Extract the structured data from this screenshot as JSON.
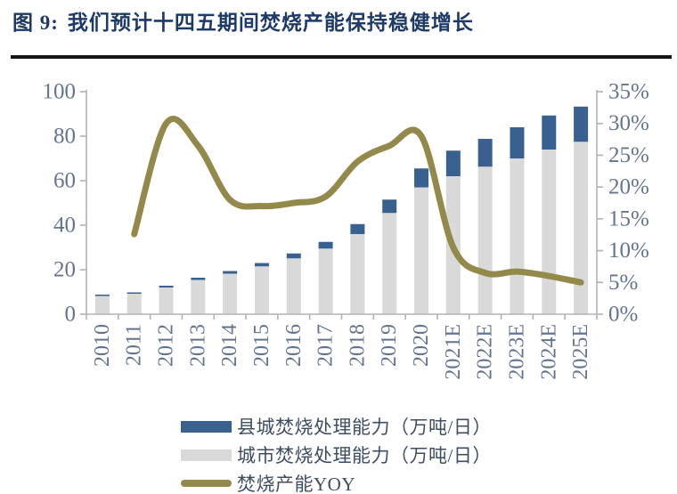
{
  "figure": {
    "label": "图 9:",
    "title": "我们预计十四五期间焚烧产能保持稳健增长"
  },
  "colors": {
    "title": "#1e3a66",
    "county_bar": "#38618f",
    "city_bar": "#d9d9d9",
    "yoy_line": "#93894a",
    "axis_line": "#b3b3b3",
    "axis_label": "#64748f",
    "divider": "#161616"
  },
  "chart_data": {
    "type": "combo-stacked-bar-line",
    "title": "",
    "categories": [
      "2010",
      "2011",
      "2012",
      "2013",
      "2014",
      "2015",
      "2016",
      "2017",
      "2018",
      "2019",
      "2020",
      "2021E",
      "2022E",
      "2023E",
      "2024E",
      "2025E"
    ],
    "series": [
      {
        "name": "县城焚烧处理能力（万吨/日）",
        "type": "bar",
        "stack_position": "top",
        "color": "#38618f",
        "axis": "left",
        "values": [
          0.6,
          0.6,
          0.8,
          1.0,
          1.2,
          1.5,
          2.2,
          3.0,
          4.5,
          6.0,
          8.5,
          11.5,
          12.5,
          14.0,
          15.3,
          15.8
        ]
      },
      {
        "name": "城市焚烧处理能力（万吨/日）",
        "type": "bar",
        "stack_position": "bottom",
        "color": "#d9d9d9",
        "axis": "left",
        "values": [
          8.2,
          9.2,
          12.0,
          15.4,
          18.2,
          21.5,
          25.1,
          29.5,
          36.0,
          45.5,
          57.0,
          62.0,
          66.3,
          70.0,
          74.0,
          77.5
        ]
      },
      {
        "name": "焚烧产能YOY",
        "type": "line",
        "smooth": true,
        "color": "#93894a",
        "axis": "right",
        "values": [
          null,
          12.6,
          30.0,
          26.5,
          18.0,
          17.0,
          17.5,
          18.5,
          24.0,
          26.5,
          28.0,
          10.5,
          6.5,
          6.7,
          6.0,
          5.0
        ]
      }
    ],
    "left_axis": {
      "min": 0,
      "max": 100,
      "step": 20,
      "ticks": [
        "0",
        "20",
        "40",
        "60",
        "80",
        "100"
      ]
    },
    "right_axis": {
      "min": 0,
      "max": 35,
      "step": 5,
      "unit": "%",
      "ticks": [
        "0%",
        "5%",
        "10%",
        "15%",
        "20%",
        "25%",
        "30%",
        "35%"
      ]
    },
    "grid": false,
    "legend_position": "bottom-left"
  },
  "legend": {
    "items": [
      {
        "label": "县城焚烧处理能力（万吨/日）",
        "color": "#38618f",
        "shape": "rect"
      },
      {
        "label": "城市焚烧处理能力（万吨/日）",
        "color": "#d9d9d9",
        "shape": "rect"
      },
      {
        "label": "焚烧产能YOY",
        "color": "#93894a",
        "shape": "line"
      }
    ]
  }
}
